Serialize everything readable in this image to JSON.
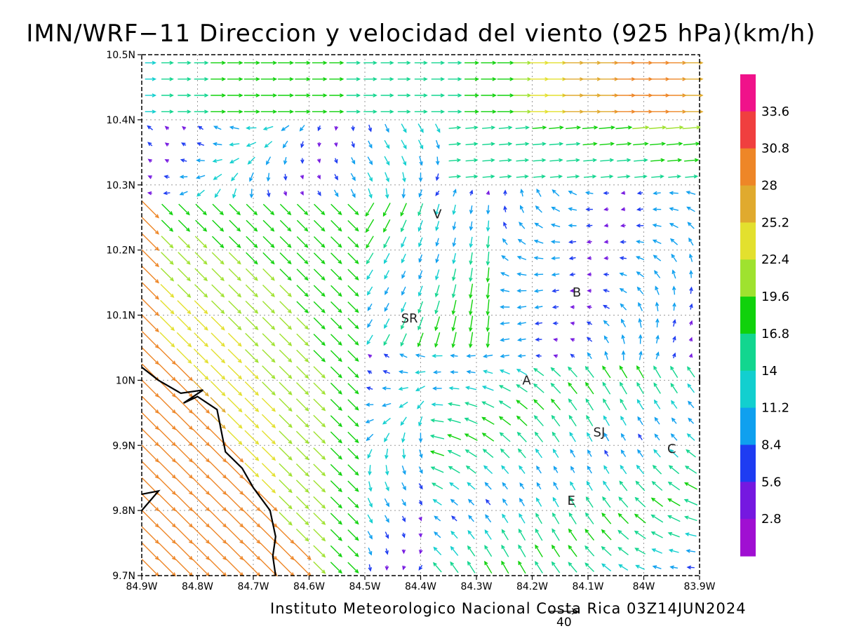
{
  "title": "IMN/WRF−11 Direccion y velocidad del viento (925 hPa)(km/h)",
  "footer": "Instituto Meteorologico Nacional Costa Rica 03Z14JUN2024",
  "reference_vector": "40",
  "colorbar": {
    "labels": [
      "33.6",
      "30.8",
      "28",
      "25.2",
      "22.4",
      "19.6",
      "16.8",
      "14",
      "11.2",
      "8.4",
      "5.6",
      "2.8"
    ],
    "colors": [
      "#f0128a",
      "#f03f3f",
      "#ee8627",
      "#e0aa2e",
      "#e3e02e",
      "#9fe22f",
      "#10d20c",
      "#12d68f",
      "#12cfcf",
      "#0fa0ef",
      "#1e3cf2",
      "#7518e0",
      "#a00fd2"
    ]
  },
  "map": {
    "lat_ticks": [
      "10.5N",
      "10.4N",
      "10.3N",
      "10.2N",
      "10.1N",
      "10N",
      "9.9N",
      "9.8N",
      "9.7N"
    ],
    "lon_ticks": [
      "84.9W",
      "84.8W",
      "84.7W",
      "84.6W",
      "84.5W",
      "84.4W",
      "84.3W",
      "84.2W",
      "84.1W",
      "84W",
      "83.9W"
    ],
    "lon_range": [
      -84.9,
      -83.9
    ],
    "lat_range": [
      9.7,
      10.5
    ],
    "cities": [
      {
        "label": "V",
        "lon": -84.37,
        "lat": 10.255
      },
      {
        "label": "B",
        "lon": -84.12,
        "lat": 10.135
      },
      {
        "label": "SR",
        "lon": -84.42,
        "lat": 10.095
      },
      {
        "label": "A",
        "lon": -84.21,
        "lat": 10.0
      },
      {
        "label": "I",
        "lon": -83.9,
        "lat": 10.0
      },
      {
        "label": "SJ",
        "lon": -84.08,
        "lat": 9.92
      },
      {
        "label": "C",
        "lon": -83.95,
        "lat": 9.895
      },
      {
        "label": "E",
        "lon": -84.13,
        "lat": 9.815
      }
    ],
    "coastline": [
      [
        -84.9,
        10.02
      ],
      [
        -84.87,
        10.0
      ],
      [
        -84.83,
        9.98
      ],
      [
        -84.79,
        9.985
      ],
      [
        -84.825,
        9.965
      ],
      [
        -84.8,
        9.975
      ],
      [
        -84.765,
        9.955
      ],
      [
        -84.75,
        9.89
      ],
      [
        -84.72,
        9.865
      ],
      [
        -84.7,
        9.835
      ],
      [
        -84.67,
        9.8
      ],
      [
        -84.665,
        9.78
      ],
      [
        -84.66,
        9.76
      ],
      [
        -84.665,
        9.73
      ],
      [
        -84.66,
        9.7
      ]
    ],
    "coast_lower": [
      [
        -84.9,
        9.8
      ],
      [
        -84.87,
        9.83
      ],
      [
        -84.9,
        9.825
      ]
    ]
  }
}
